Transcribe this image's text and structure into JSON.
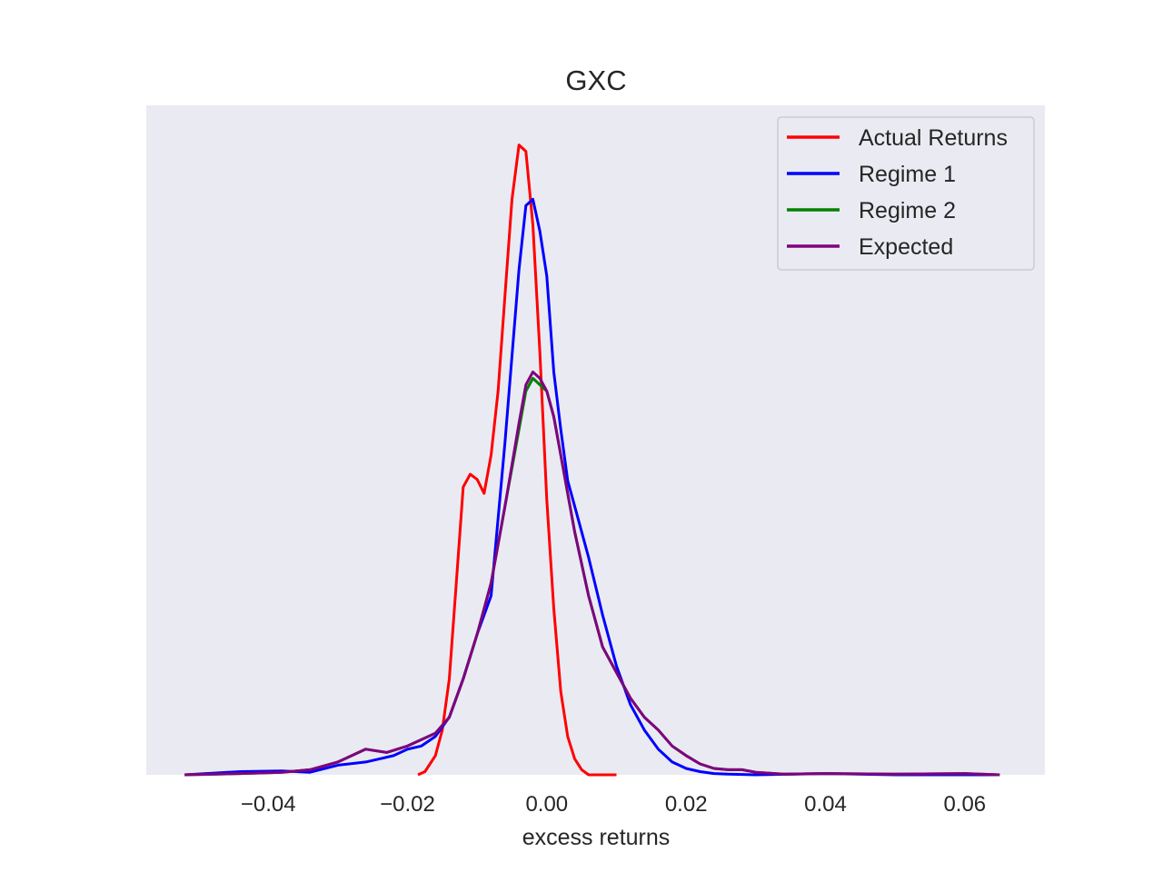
{
  "chart_data": {
    "type": "line",
    "title": "GXC",
    "xlabel": "excess returns",
    "ylabel": "",
    "xlim": [
      -0.0575,
      0.0715
    ],
    "ylim": [
      0,
      1
    ],
    "x_ticks": [
      -0.04,
      -0.02,
      0.0,
      0.02,
      0.04,
      0.06
    ],
    "x_tick_labels": [
      "−0.04",
      "−0.02",
      "0.00",
      "0.02",
      "0.04",
      "0.06"
    ],
    "y_ticks_shown": false,
    "grid": false,
    "background": "#eaeaf2",
    "legend_position": "top-right",
    "series": [
      {
        "name": "Actual Returns",
        "color": "#ff0000",
        "x": [
          -0.0185,
          -0.0175,
          -0.016,
          -0.015,
          -0.014,
          -0.013,
          -0.012,
          -0.011,
          -0.01,
          -0.009,
          -0.008,
          -0.007,
          -0.006,
          -0.005,
          -0.004,
          -0.003,
          -0.002,
          -0.001,
          0.0,
          0.001,
          0.002,
          0.003,
          0.004,
          0.005,
          0.006,
          0.007,
          0.008,
          0.009,
          0.01
        ],
        "y": [
          0.0,
          0.005,
          0.03,
          0.07,
          0.15,
          0.3,
          0.45,
          0.47,
          0.462,
          0.44,
          0.5,
          0.6,
          0.75,
          0.9,
          0.985,
          0.975,
          0.86,
          0.66,
          0.43,
          0.26,
          0.13,
          0.06,
          0.025,
          0.008,
          0.0,
          0.0,
          0.0,
          0.0,
          0.0
        ]
      },
      {
        "name": "Regime 1",
        "color": "#0000ff",
        "x": [
          -0.052,
          -0.044,
          -0.038,
          -0.034,
          -0.03,
          -0.026,
          -0.024,
          -0.022,
          -0.02,
          -0.018,
          -0.016,
          -0.014,
          -0.012,
          -0.01,
          -0.008,
          -0.006,
          -0.004,
          -0.003,
          -0.002,
          -0.001,
          0.0,
          0.001,
          0.002,
          0.003,
          0.004,
          0.006,
          0.008,
          0.01,
          0.012,
          0.014,
          0.016,
          0.018,
          0.02,
          0.022,
          0.024,
          0.026,
          0.03,
          0.04,
          0.05,
          0.065
        ],
        "y": [
          0.0,
          0.005,
          0.006,
          0.004,
          0.015,
          0.02,
          0.025,
          0.03,
          0.04,
          0.045,
          0.06,
          0.09,
          0.15,
          0.22,
          0.28,
          0.52,
          0.79,
          0.89,
          0.9,
          0.85,
          0.78,
          0.63,
          0.54,
          0.46,
          0.42,
          0.34,
          0.25,
          0.17,
          0.11,
          0.07,
          0.04,
          0.02,
          0.01,
          0.005,
          0.002,
          0.001,
          0.0,
          0.002,
          0.0,
          0.0
        ]
      },
      {
        "name": "Regime 2",
        "color": "#008000",
        "x": [
          -0.052,
          -0.044,
          -0.038,
          -0.034,
          -0.03,
          -0.026,
          -0.023,
          -0.02,
          -0.018,
          -0.016,
          -0.014,
          -0.012,
          -0.01,
          -0.008,
          -0.006,
          -0.004,
          -0.003,
          -0.002,
          -0.001,
          0.0,
          0.001,
          0.002,
          0.003,
          0.004,
          0.006,
          0.008,
          0.01,
          0.012,
          0.014,
          0.016,
          0.018,
          0.02,
          0.022,
          0.024,
          0.026,
          0.028,
          0.03,
          0.034,
          0.04,
          0.05,
          0.06,
          0.065
        ],
        "y": [
          0.0,
          0.002,
          0.004,
          0.008,
          0.02,
          0.04,
          0.035,
          0.045,
          0.055,
          0.065,
          0.09,
          0.15,
          0.22,
          0.3,
          0.42,
          0.54,
          0.6,
          0.62,
          0.61,
          0.6,
          0.56,
          0.5,
          0.44,
          0.38,
          0.28,
          0.2,
          0.16,
          0.12,
          0.09,
          0.07,
          0.045,
          0.03,
          0.017,
          0.01,
          0.008,
          0.008,
          0.004,
          0.001,
          0.002,
          0.001,
          0.002,
          0.0
        ]
      },
      {
        "name": "Expected",
        "color": "#800080",
        "x": [
          -0.052,
          -0.044,
          -0.038,
          -0.034,
          -0.03,
          -0.026,
          -0.023,
          -0.02,
          -0.018,
          -0.016,
          -0.014,
          -0.012,
          -0.01,
          -0.008,
          -0.006,
          -0.004,
          -0.003,
          -0.002,
          -0.001,
          0.0,
          0.001,
          0.002,
          0.003,
          0.004,
          0.006,
          0.008,
          0.01,
          0.012,
          0.014,
          0.016,
          0.018,
          0.02,
          0.022,
          0.024,
          0.026,
          0.028,
          0.03,
          0.034,
          0.04,
          0.05,
          0.06,
          0.065
        ],
        "y": [
          0.0,
          0.002,
          0.004,
          0.008,
          0.02,
          0.04,
          0.035,
          0.045,
          0.055,
          0.065,
          0.09,
          0.15,
          0.22,
          0.3,
          0.42,
          0.55,
          0.61,
          0.63,
          0.62,
          0.6,
          0.56,
          0.5,
          0.44,
          0.38,
          0.28,
          0.2,
          0.16,
          0.12,
          0.09,
          0.07,
          0.045,
          0.03,
          0.017,
          0.01,
          0.008,
          0.008,
          0.004,
          0.001,
          0.002,
          0.001,
          0.002,
          0.0
        ]
      }
    ]
  }
}
